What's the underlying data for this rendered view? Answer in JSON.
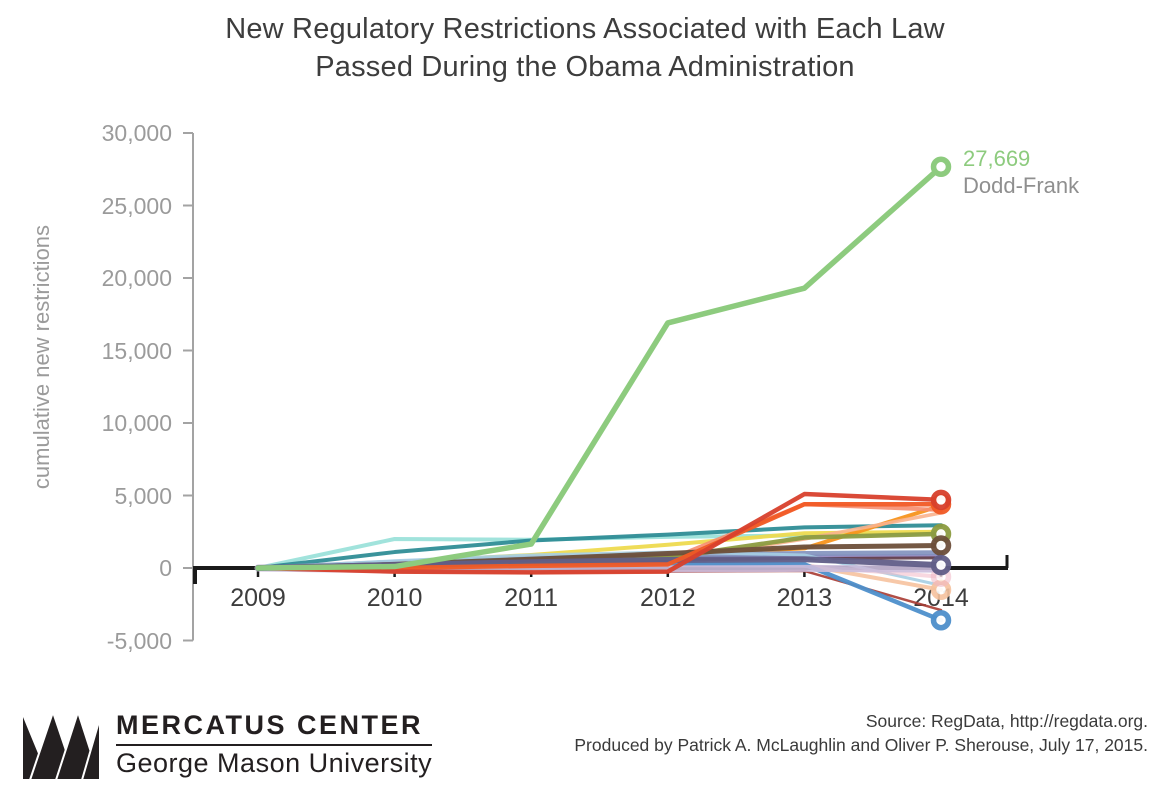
{
  "title": {
    "line1": "New Regulatory Restrictions Associated with Each Law",
    "line2": "Passed During the Obama Administration"
  },
  "y_axis": {
    "label": "cumulative new restrictions",
    "ticks": [
      {
        "value": 30000,
        "label": "30,000"
      },
      {
        "value": 25000,
        "label": "25,000"
      },
      {
        "value": 20000,
        "label": "20,000"
      },
      {
        "value": 15000,
        "label": "15,000"
      },
      {
        "value": 10000,
        "label": "10,000"
      },
      {
        "value": 5000,
        "label": "5,000"
      },
      {
        "value": 0,
        "label": "0"
      },
      {
        "value": -5000,
        "label": "-5,000"
      }
    ]
  },
  "x_axis": {
    "ticks": [
      {
        "value": 2009,
        "label": "2009"
      },
      {
        "value": 2010,
        "label": "2010"
      },
      {
        "value": 2011,
        "label": "2011"
      },
      {
        "value": 2012,
        "label": "2012"
      },
      {
        "value": 2013,
        "label": "2013"
      },
      {
        "value": 2014,
        "label": "2014"
      }
    ]
  },
  "annotation": {
    "value": "27,669",
    "name": "Dodd-Frank"
  },
  "colors": {
    "annotation_value": "#8dcb7e",
    "annotation_name": "#8f8f8f",
    "axis_spine": "#a3a3a3",
    "zero_line": "#1a1a1a"
  },
  "chart_data": {
    "type": "line",
    "title": "New Regulatory Restrictions Associated with Each Law Passed During the Obama Administration",
    "xlabel": "",
    "ylabel": "cumulative new restrictions",
    "x": [
      2009,
      2010,
      2011,
      2012,
      2013,
      2014
    ],
    "ylim": [
      -5000,
      30000
    ],
    "grid": false,
    "legend": "none",
    "annotated_point": {
      "series": "Dodd-Frank",
      "x": 2014,
      "y": 27669,
      "text": "27,669 Dodd-Frank"
    },
    "series": [
      {
        "name": "unlabeled-light-cyan",
        "color": "#9ce2da",
        "width": 4,
        "opacity": 0.95,
        "marker": false,
        "values": [
          0,
          2000,
          1950,
          2150,
          2250,
          2400
        ]
      },
      {
        "name": "unlabeled-teal",
        "color": "#2f8d96",
        "width": 4,
        "opacity": 0.95,
        "marker": false,
        "values": [
          0,
          1100,
          1900,
          2300,
          2800,
          2950
        ]
      },
      {
        "name": "unlabeled-yellow",
        "color": "#eeda4f",
        "width": 4,
        "opacity": 0.95,
        "marker": false,
        "values": [
          0,
          400,
          900,
          1600,
          2400,
          2500
        ]
      },
      {
        "name": "unlabeled-orange",
        "color": "#f7941e",
        "width": 4,
        "opacity": 0.95,
        "marker": false,
        "values": [
          0,
          250,
          600,
          950,
          1350,
          4300
        ]
      },
      {
        "name": "unlabeled-light-salmon",
        "color": "#f9b28e",
        "width": 3.5,
        "opacity": 0.9,
        "marker": false,
        "values": [
          0,
          100,
          300,
          500,
          2000,
          3800
        ]
      },
      {
        "name": "unlabeled-salmon",
        "color": "#f68d6f",
        "width": 4,
        "opacity": 0.9,
        "marker": false,
        "values": [
          0,
          150,
          350,
          550,
          4400,
          4000
        ]
      },
      {
        "name": "unlabeled-purple",
        "color": "#9184c0",
        "width": 3.5,
        "opacity": 0.9,
        "marker": false,
        "values": [
          0,
          300,
          550,
          700,
          800,
          850
        ]
      },
      {
        "name": "unlabeled-slate-blue",
        "color": "#8090bc",
        "width": 5,
        "opacity": 0.9,
        "marker": false,
        "values": [
          0,
          400,
          700,
          900,
          1000,
          1050
        ]
      },
      {
        "name": "unlabeled-maroon",
        "color": "#5e3a47",
        "width": 3,
        "opacity": 0.9,
        "marker": false,
        "values": [
          0,
          150,
          350,
          550,
          650,
          700
        ]
      },
      {
        "name": "unlabeled-dark-red",
        "color": "#a93b32",
        "width": 2.5,
        "opacity": 0.9,
        "marker": false,
        "values": [
          0,
          -250,
          -300,
          -250,
          -200,
          -2900
        ]
      },
      {
        "name": "unlabeled-pale-blue",
        "color": "#a6cee3",
        "width": 3,
        "opacity": 0.9,
        "marker": false,
        "values": [
          0,
          500,
          900,
          1100,
          900,
          -1200
        ]
      },
      {
        "name": "unlabeled-peach",
        "color": "#f6c29e",
        "width": 4,
        "opacity": 0.9,
        "marker": true,
        "values": [
          0,
          50,
          150,
          250,
          200,
          -1500
        ]
      },
      {
        "name": "unlabeled-pink",
        "color": "#f2b8c6",
        "width": 4,
        "opacity": 0.55,
        "marker": true,
        "values": [
          0,
          50,
          100,
          200,
          150,
          -600
        ]
      },
      {
        "name": "unlabeled-blue",
        "color": "#4d8fcb",
        "width": 4.5,
        "opacity": 0.95,
        "marker": true,
        "values": [
          0,
          100,
          200,
          300,
          250,
          -3600
        ]
      },
      {
        "name": "unlabeled-lavender",
        "color": "#cbbcdc",
        "width": 7,
        "opacity": 0.9,
        "marker": false,
        "values": [
          0,
          -120,
          -100,
          -60,
          -30,
          -80
        ]
      },
      {
        "name": "unlabeled-olive",
        "color": "#8c9b40",
        "width": 4.5,
        "opacity": 0.95,
        "marker": true,
        "values": [
          0,
          100,
          300,
          700,
          2100,
          2350
        ]
      },
      {
        "name": "unlabeled-brown",
        "color": "#6d4f3a",
        "width": 5,
        "opacity": 0.95,
        "marker": true,
        "values": [
          0,
          250,
          600,
          1000,
          1450,
          1550
        ]
      },
      {
        "name": "unlabeled-slate-purple",
        "color": "#615e88",
        "width": 6,
        "opacity": 0.95,
        "marker": true,
        "values": [
          0,
          200,
          400,
          550,
          600,
          200
        ]
      },
      {
        "name": "unlabeled-orange-red",
        "color": "#f15a25",
        "width": 4.5,
        "opacity": 0.95,
        "marker": true,
        "values": [
          0,
          0,
          150,
          250,
          4400,
          4400
        ]
      },
      {
        "name": "unlabeled-red",
        "color": "#d8402c",
        "width": 4.5,
        "opacity": 0.95,
        "marker": true,
        "values": [
          0,
          -250,
          -300,
          -250,
          5100,
          4700
        ]
      },
      {
        "name": "Dodd-Frank",
        "color": "#8dcb7e",
        "width": 5.5,
        "opacity": 1,
        "marker": true,
        "values": [
          0,
          100,
          1650,
          16900,
          19300,
          27669
        ]
      }
    ]
  },
  "footer": {
    "logo_primary": "MERCATUS CENTER",
    "logo_secondary": "George Mason University",
    "source_line1": "Source: RegData, http://regdata.org.",
    "source_line2": "Produced by Patrick A. McLaughlin and Oliver P. Sherouse, July 17, 2015."
  }
}
